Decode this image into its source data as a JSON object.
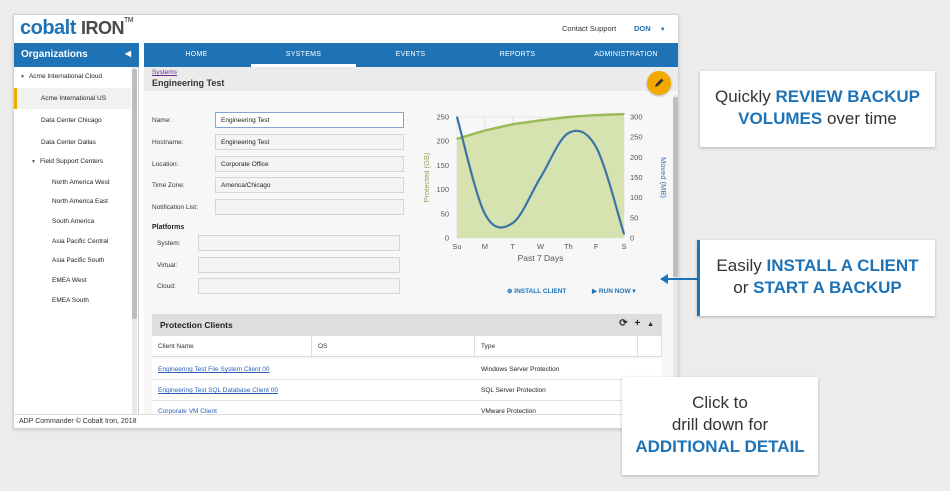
{
  "app": {
    "logo_main": "cobalt",
    "logo_sub": "IRON",
    "logo_tm": "TM",
    "contact": "Contact Support",
    "user": "DON",
    "user_caret": "▼",
    "footer": "ADP Commander © Cobalt Iron, 2018"
  },
  "sidebar": {
    "title": "Organizations",
    "collapse_icon": "◀",
    "items": [
      {
        "label": "Acme International Cloud",
        "caret": "▼"
      },
      {
        "label": "Acme International US"
      },
      {
        "label": "Data Center Chicago"
      },
      {
        "label": "Data Center Dallas"
      },
      {
        "label": "Field Support Centers",
        "caret": "▼"
      },
      {
        "label": "North America West"
      },
      {
        "label": "North America East"
      },
      {
        "label": "South America"
      },
      {
        "label": "Asia Pacific Central"
      },
      {
        "label": "Asia Pacific South"
      },
      {
        "label": "EMEA West"
      },
      {
        "label": "EMEA South"
      }
    ]
  },
  "nav": {
    "tabs": [
      {
        "label": "HOME"
      },
      {
        "label": "SYSTEMS",
        "active": true
      },
      {
        "label": "EVENTS"
      },
      {
        "label": "REPORTS"
      },
      {
        "label": "ADMINISTRATION"
      }
    ]
  },
  "system": {
    "breadcrumb": "Systems",
    "title": "Engineering Test",
    "fields": [
      {
        "label": "Name:",
        "value": "Engineering Test"
      },
      {
        "label": "Hostname:",
        "value": "Engineering Test"
      },
      {
        "label": "Location:",
        "value": "Corporate Office"
      },
      {
        "label": "Time Zone:",
        "value": "America/Chicago"
      },
      {
        "label": "Notification List:",
        "value": ""
      }
    ],
    "platforms_label": "Platforms",
    "platforms": [
      {
        "label": "System:",
        "value": ""
      },
      {
        "label": "Virtual:",
        "value": ""
      },
      {
        "label": "Cloud:",
        "value": ""
      }
    ]
  },
  "actions": {
    "install_icon": "⊕",
    "install": "INSTALL CLIENT",
    "run_icon": "▶",
    "run": "RUN NOW",
    "run_caret": "▾"
  },
  "chart_data": {
    "type": "line",
    "categories": [
      "Su",
      "M",
      "T",
      "W",
      "Th",
      "F",
      "S"
    ],
    "xlabel": "Past 7 Days",
    "ylabel_left": "Protected (GB)",
    "ylabel_right": "Moved (MB)",
    "y_left_lim": [
      0,
      250
    ],
    "y_left_ticks": [
      0,
      50,
      100,
      150,
      200,
      250
    ],
    "y_right_lim": [
      0,
      300
    ],
    "y_right_ticks": [
      0,
      50,
      100,
      150,
      200,
      250,
      300
    ],
    "grid": true,
    "series": [
      {
        "axis": "left",
        "type": "area",
        "color": "#9bbb59",
        "values": [
          205,
          222,
          235,
          243,
          250,
          254,
          256
        ]
      },
      {
        "axis": "right",
        "type": "line",
        "color": "#3b73a8",
        "values": [
          300,
          60,
          37,
          150,
          260,
          225,
          10
        ]
      }
    ]
  },
  "clients": {
    "title": "Protection Clients",
    "icons": [
      "⟳",
      "+",
      "▲"
    ],
    "columns": [
      "Client Name",
      "OS",
      "Type"
    ],
    "rows": [
      {
        "name": "Engineering Test File System Client 00",
        "os": "",
        "type": "Windows Server Protection"
      },
      {
        "name": "Engineering Test SQL Database Client 00",
        "os": "",
        "type": "SQL Server Protection"
      },
      {
        "name": "Corporate VM Client",
        "os": "",
        "type": "VMware Protection"
      }
    ]
  },
  "callouts": {
    "c1_line1_pre": "Quickly",
    "c1_line1_strong": "REVIEW BACKUP",
    "c1_line2_strong": "VOLUMES",
    "c1_line2_post": "over time",
    "c2_line1_pre": "Easily",
    "c2_line1_strong": "INSTALL A CLIENT",
    "c2_line2_pre": "or",
    "c2_line2_strong": "START A BACKUP",
    "c3_line1": "Click to",
    "c3_line2": "drill down for",
    "c3_line3_strong": "ADDITIONAL DETAIL"
  }
}
